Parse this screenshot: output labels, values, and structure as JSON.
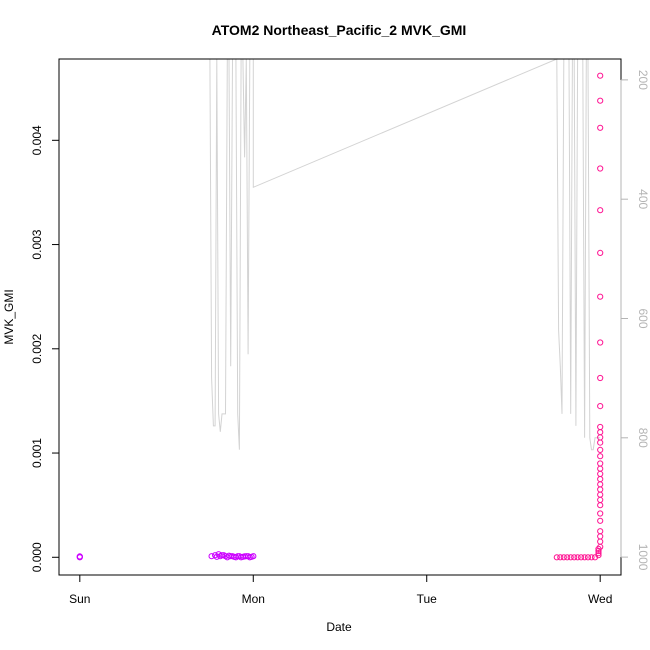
{
  "chart_data": {
    "type": "scatter",
    "title": "ATOM2 Northeast_Pacific_2 MVK_GMI",
    "xlabel": "Date",
    "ylabel": "MVK_GMI",
    "x_ticks": [
      "Sun",
      "Mon",
      "Tue",
      "Wed"
    ],
    "x_tick_values": [
      0,
      1,
      2,
      3
    ],
    "xlim": [
      -0.12,
      3.12
    ],
    "ylim": [
      -0.00017,
      0.00478
    ],
    "y_ticks": [
      0.0,
      0.001,
      0.002,
      0.003,
      0.004
    ],
    "y_tick_labels": [
      "0.000",
      "0.001",
      "0.002",
      "0.003",
      "0.004"
    ],
    "y2_ticks": [
      200,
      400,
      600,
      800,
      1000
    ],
    "y2_tick_labels": [
      "200",
      "400",
      "600",
      "800",
      "1000"
    ],
    "y2lim": [
      1030,
      165
    ],
    "colors": {
      "points_purple": "#cc00ff",
      "points_pink": "#ff1493",
      "pressure_line": "#d3d3d3",
      "right_axis": "#b4b4b4"
    },
    "series": [
      {
        "marker": "circle",
        "color": "#cc00ff",
        "x": [
          0.0,
          0.0,
          0.0,
          0.76,
          0.78,
          0.8,
          0.82,
          0.84,
          0.86,
          0.88,
          0.9,
          0.92,
          0.94,
          0.96,
          0.98,
          1.0,
          0.79,
          0.81,
          0.83,
          0.85,
          0.87,
          0.89,
          0.91,
          0.93,
          0.95,
          0.97,
          0.99
        ],
        "y": [
          0.0,
          5e-06,
          8e-06,
          1e-05,
          2e-05,
          3e-05,
          2e-05,
          1e-05,
          1.5e-05,
          1e-05,
          0.0,
          1e-05,
          5e-06,
          1e-05,
          0.0,
          1e-05,
          5e-06,
          1e-05,
          2e-05,
          0.0,
          1e-05,
          5e-06,
          1e-05,
          0.0,
          8e-06,
          1e-05,
          5e-06
        ]
      },
      {
        "marker": "circle",
        "color": "#ff1493",
        "x": [
          2.75,
          2.77,
          2.79,
          2.81,
          2.83,
          2.85,
          2.87,
          2.89,
          2.91,
          2.93,
          2.95,
          2.97,
          2.99,
          2.99,
          2.99,
          2.99,
          3.0,
          3.0,
          3.0,
          3.0,
          3.0,
          3.0,
          3.0,
          3.0,
          3.0,
          3.0,
          3.0,
          3.0,
          3.0,
          3.0,
          3.0,
          3.0,
          3.0,
          3.0,
          3.0,
          3.0,
          3.0,
          3.0,
          3.0,
          3.0,
          3.0,
          3.0,
          3.0,
          3.0,
          3.0,
          3.0,
          3.0
        ],
        "y": [
          0.0,
          0.0,
          0.0,
          0.0,
          0.0,
          0.0,
          0.0,
          0.0,
          0.0,
          0.0,
          0.0,
          0.0,
          2e-05,
          4e-05,
          6e-05,
          8e-05,
          0.0001,
          0.00015,
          0.0002,
          0.00025,
          0.00035,
          0.00042,
          0.0005,
          0.00055,
          0.0006,
          0.00065,
          0.0007,
          0.00075,
          0.0008,
          0.00085,
          0.0009,
          0.00097,
          0.00103,
          0.0011,
          0.00115,
          0.0012,
          0.00125,
          0.00145,
          0.00172,
          0.00206,
          0.0025,
          0.00292,
          0.00333,
          0.00373,
          0.00412,
          0.00438,
          0.00462
        ]
      }
    ],
    "pressure_line": {
      "color": "#d3d3d3",
      "x": [
        0.75,
        0.76,
        0.77,
        0.78,
        0.79,
        0.8,
        0.81,
        0.82,
        0.83,
        0.84,
        0.85,
        0.86,
        0.87,
        0.88,
        0.89,
        0.9,
        0.91,
        0.92,
        0.93,
        0.94,
        0.95,
        0.96,
        0.97,
        0.98,
        0.99,
        1.0,
        1.0,
        2.75,
        2.76,
        2.77,
        2.78,
        2.79,
        2.8,
        2.81,
        2.82,
        2.83,
        2.84,
        2.85,
        2.86,
        2.87,
        2.88,
        2.89,
        2.9,
        2.91,
        2.92,
        2.93,
        2.94,
        2.95,
        2.96,
        2.97,
        2.98,
        2.99,
        3.0
      ],
      "y": [
        165,
        700,
        780,
        780,
        165,
        760,
        790,
        760,
        760,
        760,
        165,
        165,
        680,
        165,
        165,
        165,
        760,
        820,
        165,
        165,
        330,
        165,
        660,
        165,
        165,
        165,
        380,
        165,
        620,
        680,
        760,
        165,
        165,
        165,
        165,
        760,
        165,
        165,
        780,
        165,
        165,
        165,
        165,
        800,
        165,
        165,
        800,
        820,
        820,
        800,
        800,
        800,
        800
      ]
    }
  }
}
